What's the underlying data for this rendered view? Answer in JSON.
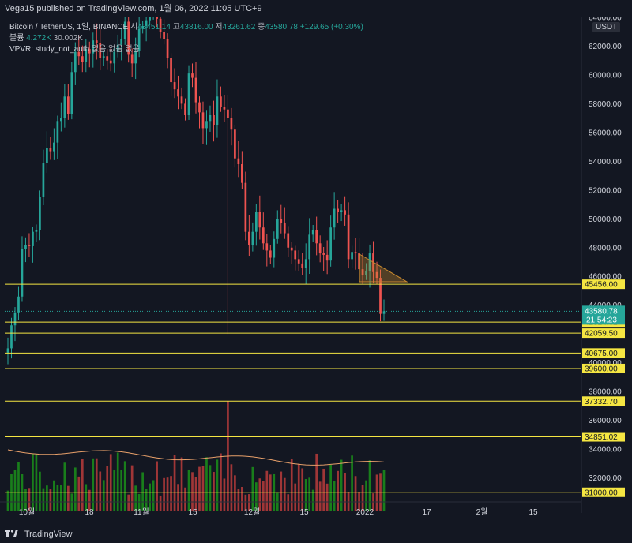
{
  "header": {
    "published": "Vega15 published on TradingView.com, 1월 06, 2022 11:05 UTC+9"
  },
  "legend": {
    "symbol": "Bitcoin / TetherUS, 1일, BINANCE",
    "open_label": "시",
    "open": "43451.14",
    "high_label": "고",
    "high": "43816.00",
    "low_label": "저",
    "low": "43261.62",
    "close_label": "종",
    "close": "43580.78",
    "change": "+129.65 (+0.30%)",
    "volume_label": "볼륨",
    "volume_1": "4.272K",
    "volume_2": "30.002K",
    "vpvr_label": "VPVR: study_not_auth",
    "vpvr_tail": "없음 없음 없음"
  },
  "currency_badge": "USDT",
  "footer": {
    "brand": "TradingView"
  },
  "colors": {
    "background": "#131722",
    "up": "#26a69a",
    "down": "#ef5350",
    "level_line": "#f5e642",
    "level_label_bg": "#f5e642",
    "price_label_bg": "#26a69a",
    "triangle": "#c98a2e"
  },
  "chart_data": {
    "type": "candlestick",
    "y_axis": {
      "min": 30000,
      "max": 64000,
      "ticks": [
        "62000.00",
        "60000.00",
        "58000.00",
        "56000.00",
        "54000.00",
        "52000.00",
        "50000.00",
        "48000.00",
        "46000.00",
        "44000.00",
        "42000.00",
        "40000.00",
        "38000.00",
        "36000.00",
        "34000.00",
        "32000.00"
      ],
      "top_partial_label": "64000.00"
    },
    "x_axis": {
      "labels": [
        "10월",
        "18",
        "11월",
        "15",
        "12월",
        "15",
        "2022",
        "17",
        "2월",
        "15"
      ]
    },
    "levels": [
      "45456.00",
      "42824.62",
      "42059.50",
      "40675.00",
      "39600.00",
      "37332.70",
      "34851.02",
      "31000.00"
    ],
    "current_price": "43580.78",
    "countdown": "21:54:23",
    "approx_closes": [
      41000,
      42600,
      43500,
      44600,
      47900,
      48200,
      48100,
      49100,
      49200,
      51500,
      53900,
      54900,
      54700,
      55300,
      56800,
      57000,
      58500,
      57300,
      60200,
      61600,
      61300,
      60900,
      61800,
      61500,
      62400,
      62200,
      61200,
      61300,
      61000,
      60800,
      61600,
      62100,
      62500,
      63700,
      61400,
      60800,
      61700,
      63200,
      63400,
      63800,
      64200,
      64400,
      63900,
      63000,
      62500,
      61200,
      59500,
      59000,
      58500,
      58000,
      57200,
      60100,
      59800,
      58100,
      57400,
      56300,
      56800,
      57200,
      56500,
      58500,
      57800,
      57600,
      57000,
      56200,
      54200,
      53800,
      52500,
      49100,
      48200,
      49100,
      50500,
      49400,
      48300,
      47800,
      47300,
      48600,
      50000,
      49700,
      49000,
      48000,
      47800,
      47200,
      46900,
      46600,
      47200,
      48900,
      49200,
      48300,
      47600,
      47500,
      47100,
      49400,
      50700,
      50500,
      50600,
      50300,
      47200,
      47700,
      47600,
      46500,
      46100,
      46400,
      47600,
      46300,
      45900,
      43400,
      43580
    ]
  }
}
